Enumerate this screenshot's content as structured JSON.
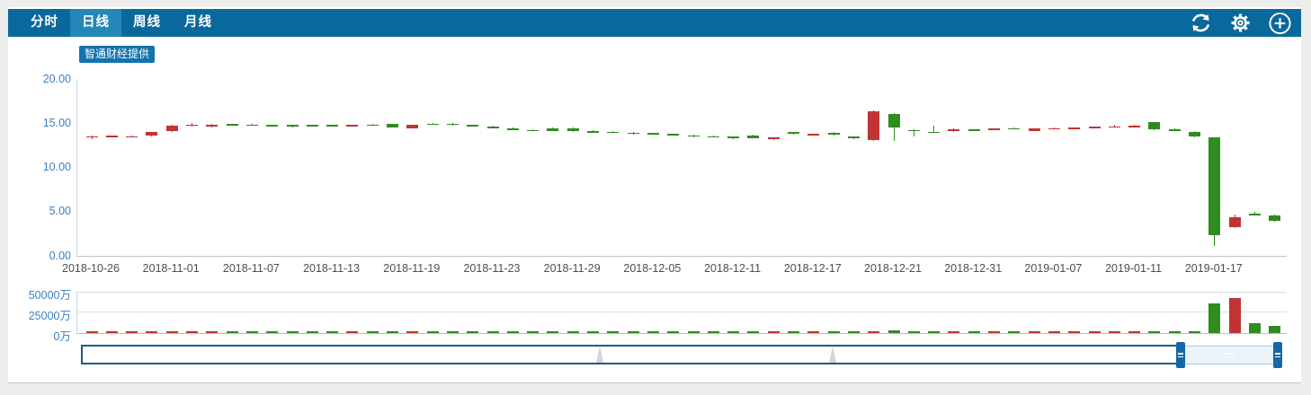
{
  "header": {
    "tabs": [
      {
        "label": "分时",
        "active": false
      },
      {
        "label": "日线",
        "active": true
      },
      {
        "label": "周线",
        "active": false
      },
      {
        "label": "月线",
        "active": false
      }
    ],
    "icons": [
      "refresh-icon",
      "gear-icon",
      "plus-circle-icon"
    ]
  },
  "provider_badge": "智通财经提供",
  "colors": {
    "header_bg": "#0a699c",
    "active_tab_bg": "#2387b7",
    "badge_bg": "#1273ad",
    "up": "#c23333",
    "down": "#2f8c1f",
    "axis_label_blue": "#3d7fc1",
    "x_label_gray": "#4d4d4d",
    "nav_border": "#175d87",
    "nav_selection": "#e9f3fb",
    "nav_handle": "#1467a8"
  },
  "chart_data": {
    "type": "candlestick+volume",
    "title": "",
    "legend": "none",
    "grid": "volume-only",
    "price_axis": {
      "min": 0,
      "max": 20,
      "ticks": [
        {
          "v": 20,
          "t": "20.00"
        },
        {
          "v": 15,
          "t": "15.00"
        },
        {
          "v": 10,
          "t": "10.00"
        },
        {
          "v": 5,
          "t": "5.00"
        },
        {
          "v": 0,
          "t": "0.00"
        }
      ]
    },
    "volume_axis": {
      "min": 0,
      "max": 50000,
      "ticks": [
        {
          "v": 50000,
          "t": "50000万"
        },
        {
          "v": 25000,
          "t": "25000万"
        },
        {
          "v": 0,
          "t": "0万"
        }
      ]
    },
    "x_tick_labels": [
      {
        "i": 0,
        "t": "2018-10-26"
      },
      {
        "i": 4,
        "t": "2018-11-01"
      },
      {
        "i": 8,
        "t": "2018-11-07"
      },
      {
        "i": 12,
        "t": "2018-11-13"
      },
      {
        "i": 16,
        "t": "2018-11-19"
      },
      {
        "i": 20,
        "t": "2018-11-23"
      },
      {
        "i": 24,
        "t": "2018-11-29"
      },
      {
        "i": 28,
        "t": "2018-12-05"
      },
      {
        "i": 32,
        "t": "2018-12-11"
      },
      {
        "i": 36,
        "t": "2018-12-17"
      },
      {
        "i": 40,
        "t": "2018-12-21"
      },
      {
        "i": 44,
        "t": "2018-12-31"
      },
      {
        "i": 48,
        "t": "2019-01-07"
      },
      {
        "i": 52,
        "t": "2019-01-11"
      },
      {
        "i": 56,
        "t": "2019-01-17"
      }
    ],
    "candle_format": "[open, high, low, close, volume_in_wan]; red = close>=open (up), green = down",
    "candles": [
      [
        13.4,
        13.6,
        13.15,
        13.55,
        520
      ],
      [
        13.5,
        13.62,
        13.42,
        13.58,
        430
      ],
      [
        13.45,
        13.58,
        13.38,
        13.55,
        380
      ],
      [
        13.6,
        14.05,
        13.55,
        14.0,
        760
      ],
      [
        14.1,
        14.8,
        14.05,
        14.72,
        980
      ],
      [
        14.7,
        15.0,
        14.62,
        14.85,
        640
      ],
      [
        14.72,
        14.95,
        14.55,
        14.8,
        560
      ],
      [
        14.88,
        14.95,
        14.75,
        14.8,
        410
      ],
      [
        14.85,
        14.92,
        14.7,
        14.78,
        390
      ],
      [
        14.78,
        14.82,
        14.68,
        14.73,
        350
      ],
      [
        14.8,
        14.85,
        14.55,
        14.77,
        420
      ],
      [
        14.8,
        14.84,
        14.72,
        14.76,
        300
      ],
      [
        14.78,
        14.83,
        14.7,
        14.74,
        280
      ],
      [
        14.72,
        14.82,
        14.68,
        14.78,
        320
      ],
      [
        14.85,
        14.92,
        14.76,
        14.8,
        360
      ],
      [
        14.9,
        14.95,
        14.48,
        14.55,
        540
      ],
      [
        14.42,
        14.85,
        14.38,
        14.78,
        620
      ],
      [
        14.95,
        15.02,
        14.85,
        14.9,
        480
      ],
      [
        14.95,
        15.0,
        14.76,
        14.8,
        440
      ],
      [
        14.78,
        14.82,
        14.62,
        14.68,
        400
      ],
      [
        14.62,
        14.68,
        14.4,
        14.45,
        460
      ],
      [
        14.38,
        14.48,
        14.18,
        14.28,
        430
      ],
      [
        14.24,
        14.3,
        14.12,
        14.18,
        350
      ],
      [
        14.45,
        14.5,
        14.08,
        14.12,
        520
      ],
      [
        14.42,
        14.48,
        14.05,
        14.1,
        500
      ],
      [
        14.12,
        14.18,
        13.98,
        14.02,
        380
      ],
      [
        14.05,
        14.1,
        13.88,
        13.95,
        360
      ],
      [
        13.92,
        14.05,
        13.75,
        13.88,
        340
      ],
      [
        13.88,
        13.94,
        13.78,
        13.82,
        310
      ],
      [
        13.8,
        13.85,
        13.58,
        13.65,
        420
      ],
      [
        13.62,
        13.66,
        13.45,
        13.5,
        390
      ],
      [
        13.55,
        13.6,
        13.38,
        13.42,
        370
      ],
      [
        13.48,
        13.52,
        13.2,
        13.4,
        450
      ],
      [
        13.65,
        13.7,
        13.25,
        13.32,
        480
      ],
      [
        13.32,
        13.42,
        13.1,
        13.38,
        410
      ],
      [
        13.98,
        14.02,
        13.72,
        13.78,
        560
      ],
      [
        13.72,
        13.82,
        13.65,
        13.78,
        390
      ],
      [
        13.95,
        14.0,
        13.62,
        13.68,
        430
      ],
      [
        13.48,
        13.52,
        13.22,
        13.3,
        470
      ],
      [
        13.05,
        16.45,
        12.95,
        16.31,
        2600
      ],
      [
        16.05,
        16.1,
        13.0,
        14.5,
        2900
      ],
      [
        14.25,
        14.3,
        13.55,
        14.2,
        900
      ],
      [
        14.05,
        14.75,
        14.0,
        14.02,
        700
      ],
      [
        14.1,
        14.4,
        14.05,
        14.32,
        520
      ],
      [
        14.28,
        14.35,
        14.15,
        14.22,
        480
      ],
      [
        14.3,
        14.42,
        14.25,
        14.38,
        440
      ],
      [
        14.45,
        14.5,
        14.32,
        14.4,
        410
      ],
      [
        14.15,
        14.45,
        14.08,
        14.4,
        460
      ],
      [
        14.42,
        14.55,
        14.3,
        14.45,
        430
      ],
      [
        14.48,
        14.55,
        14.4,
        14.5,
        380
      ],
      [
        14.55,
        14.65,
        14.48,
        14.6,
        420
      ],
      [
        14.62,
        14.78,
        14.55,
        14.66,
        450
      ],
      [
        14.7,
        14.85,
        14.6,
        14.72,
        470
      ],
      [
        15.1,
        15.15,
        14.2,
        14.35,
        1500
      ],
      [
        14.32,
        14.4,
        14.2,
        14.28,
        1600
      ],
      [
        14.0,
        14.1,
        13.45,
        13.55,
        2100
      ],
      [
        13.4,
        13.45,
        1.15,
        2.36,
        35500
      ],
      [
        3.25,
        4.65,
        3.1,
        4.4,
        42000
      ],
      [
        4.75,
        4.95,
        4.55,
        4.72,
        12500
      ],
      [
        4.55,
        4.7,
        3.85,
        3.95,
        8200
      ]
    ]
  },
  "navigator": {
    "spikes_pct": [
      47.2,
      68.5
    ],
    "selection": "right edge (most recent range selected)"
  }
}
